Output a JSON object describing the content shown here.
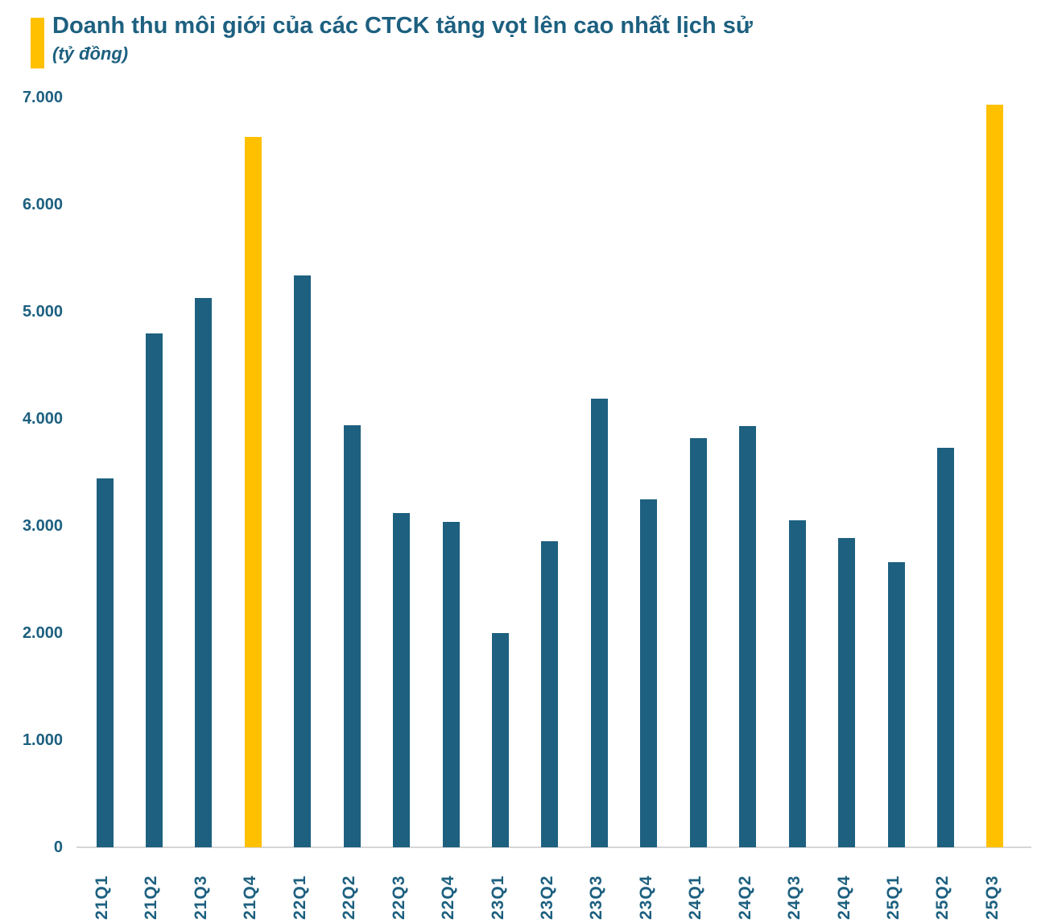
{
  "header": {
    "title": "Doanh thu môi giới của các CTCK tăng vọt lên cao nhất lịch sử",
    "subtitle": "(tỷ đồng)",
    "accent_color": "#FFC000"
  },
  "chart_data": {
    "type": "bar",
    "title": "Doanh thu môi giới của các CTCK tăng vọt lên cao nhất lịch sử",
    "subtitle": "(tỷ đồng)",
    "categories": [
      "21Q1",
      "21Q2",
      "21Q3",
      "21Q4",
      "22Q1",
      "22Q2",
      "22Q3",
      "22Q4",
      "23Q1",
      "23Q2",
      "23Q3",
      "23Q4",
      "24Q1",
      "24Q2",
      "24Q3",
      "24Q4",
      "25Q1",
      "25Q2",
      "25Q3"
    ],
    "values": [
      3440,
      4800,
      5130,
      6630,
      5340,
      3940,
      3120,
      3040,
      2000,
      2860,
      4190,
      3250,
      3820,
      3930,
      3050,
      2890,
      2660,
      3730,
      6930
    ],
    "highlight_categories": [
      "21Q4",
      "25Q3"
    ],
    "bar_color": "#1D6080",
    "highlight_color": "#FFC000",
    "xlabel": "",
    "ylabel": "tỷ đồng",
    "ylim": [
      0,
      7000
    ],
    "ytick_values": [
      7000,
      6000,
      5000,
      4000,
      3000,
      2000,
      1000,
      0
    ],
    "ytick_labels": [
      "7.000",
      "6.000",
      "5.000",
      "4.000",
      "3.000",
      "2.000",
      "1.000",
      "0"
    ],
    "grid": false,
    "legend_position": "none",
    "axis_line_color": "#D6D6D6",
    "text_color": "#1D6080"
  }
}
